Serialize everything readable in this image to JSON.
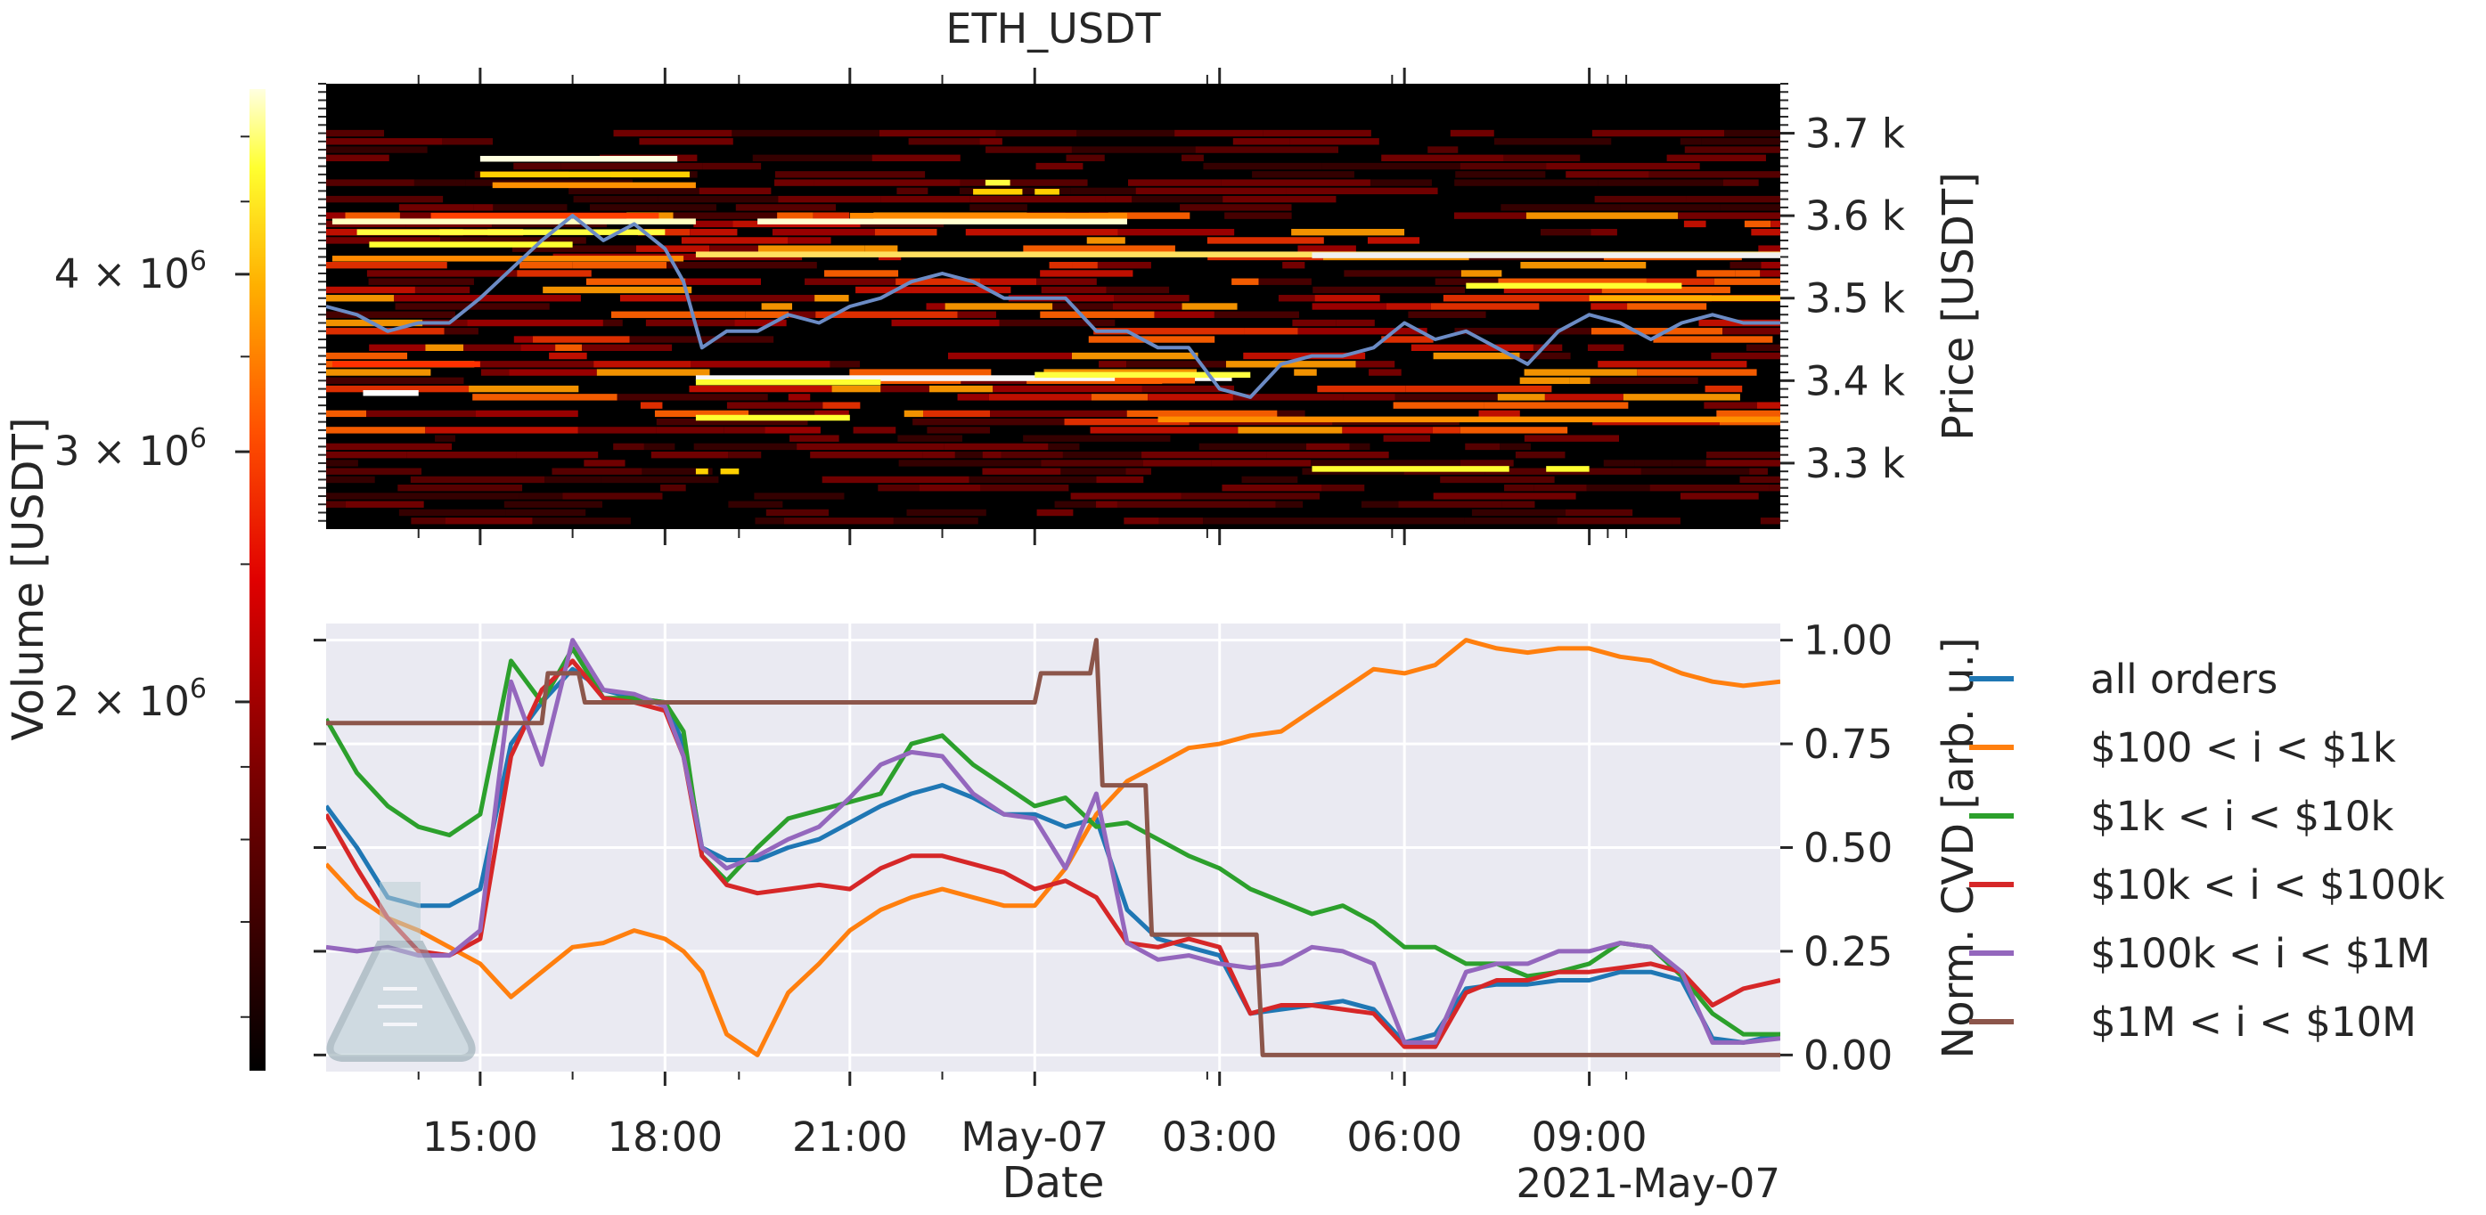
{
  "chart_data": [
    {
      "type": "heatmap",
      "title": "ETH_USDT",
      "ylabel": "Price [USDT]",
      "y_ticks": [
        "3.3 k",
        "3.4 k",
        "3.5 k",
        "3.6 k",
        "3.7 k"
      ],
      "y_tick_values": [
        3300,
        3400,
        3500,
        3600,
        3700
      ],
      "ylim": [
        3220,
        3760
      ],
      "x_range_hours": [
        12.5,
        36.1
      ],
      "x_range_label": "2021-May-06 12:30 to 2021-May-07 12:06",
      "colorbar": {
        "label": "Volume [USDT]",
        "tick_labels": [
          "2 × 10",
          "3 × 10",
          "4 × 10"
        ],
        "tick_exponent": "6",
        "tick_values": [
          2000000,
          3000000,
          4000000
        ],
        "scale": "log",
        "colormap": "hot"
      },
      "price_series": {
        "color": "#6b8bc5",
        "x_hours": [
          12.5,
          13.0,
          13.5,
          14.0,
          14.5,
          15.0,
          15.5,
          16.0,
          16.5,
          17.0,
          17.5,
          18.0,
          18.3,
          18.6,
          19.0,
          19.5,
          20.0,
          20.5,
          21.0,
          21.5,
          22.0,
          22.5,
          23.0,
          23.5,
          24.0,
          24.5,
          25.0,
          25.5,
          26.0,
          26.5,
          27.0,
          27.5,
          28.0,
          28.5,
          29.0,
          29.5,
          30.0,
          30.5,
          31.0,
          31.5,
          32.0,
          32.5,
          33.0,
          33.5,
          34.0,
          34.5,
          35.0,
          35.5,
          36.1
        ],
        "y_price": [
          3490,
          3480,
          3460,
          3470,
          3470,
          3500,
          3535,
          3570,
          3600,
          3570,
          3590,
          3560,
          3520,
          3440,
          3460,
          3460,
          3480,
          3470,
          3490,
          3500,
          3520,
          3530,
          3520,
          3500,
          3500,
          3500,
          3460,
          3460,
          3440,
          3440,
          3390,
          3380,
          3420,
          3430,
          3430,
          3440,
          3470,
          3450,
          3460,
          3440,
          3420,
          3460,
          3480,
          3470,
          3450,
          3470,
          3480,
          3470,
          3470
        ]
      }
    },
    {
      "type": "line",
      "xlabel": "Date",
      "ylabel": "Norm. CVD [arb. u.]",
      "y_ticks": [
        "0.00",
        "0.25",
        "0.50",
        "0.75",
        "1.00"
      ],
      "y_tick_values": [
        0,
        0.25,
        0.5,
        0.75,
        1.0
      ],
      "ylim": [
        -0.04,
        1.04
      ],
      "x_tick_labels": [
        "15:00",
        "18:00",
        "21:00",
        "May-07",
        "03:00",
        "06:00",
        "09:00"
      ],
      "x_tick_hours": [
        15,
        18,
        21,
        24,
        27,
        30,
        33
      ],
      "x_range_hours": [
        12.5,
        36.1
      ],
      "x_offset_label": "2021-May-07",
      "background": "#eaeaf2",
      "grid": true,
      "legend_position": "right outside",
      "series": [
        {
          "name": "all orders",
          "color": "#1f77b4",
          "x": [
            12.5,
            13.0,
            13.5,
            14.0,
            14.5,
            15.0,
            15.5,
            16.0,
            16.5,
            17.0,
            17.5,
            18.0,
            18.3,
            18.6,
            19.0,
            19.5,
            20.0,
            20.5,
            21.0,
            21.5,
            22.0,
            22.5,
            23.0,
            23.5,
            24.0,
            24.5,
            25.0,
            25.5,
            26.0,
            26.5,
            27.0,
            27.5,
            28.0,
            28.5,
            29.0,
            29.5,
            30.0,
            30.5,
            31.0,
            31.5,
            32.0,
            32.5,
            33.0,
            33.5,
            34.0,
            34.5,
            35.0,
            35.5,
            36.1
          ],
          "y": [
            0.6,
            0.5,
            0.38,
            0.36,
            0.36,
            0.4,
            0.75,
            0.85,
            0.93,
            0.88,
            0.86,
            0.85,
            0.75,
            0.5,
            0.47,
            0.47,
            0.5,
            0.52,
            0.56,
            0.6,
            0.63,
            0.65,
            0.62,
            0.58,
            0.58,
            0.55,
            0.57,
            0.35,
            0.28,
            0.26,
            0.24,
            0.1,
            0.11,
            0.12,
            0.13,
            0.11,
            0.03,
            0.05,
            0.16,
            0.17,
            0.17,
            0.18,
            0.18,
            0.2,
            0.2,
            0.18,
            0.04,
            0.03,
            0.05
          ]
        },
        {
          "name": "$100 < i < $1k",
          "color": "#ff7f0e",
          "x": [
            12.5,
            13.0,
            13.5,
            14.0,
            14.5,
            15.0,
            15.5,
            16.0,
            16.5,
            17.0,
            17.5,
            18.0,
            18.3,
            18.6,
            19.0,
            19.5,
            20.0,
            20.5,
            21.0,
            21.5,
            22.0,
            22.5,
            23.0,
            23.5,
            24.0,
            24.5,
            25.0,
            25.5,
            26.0,
            26.5,
            27.0,
            27.5,
            28.0,
            28.5,
            29.0,
            29.5,
            30.0,
            30.5,
            31.0,
            31.5,
            32.0,
            32.5,
            33.0,
            33.5,
            34.0,
            34.5,
            35.0,
            35.5,
            36.1
          ],
          "y": [
            0.46,
            0.38,
            0.33,
            0.3,
            0.26,
            0.22,
            0.14,
            0.2,
            0.26,
            0.27,
            0.3,
            0.28,
            0.25,
            0.2,
            0.05,
            0.0,
            0.15,
            0.22,
            0.3,
            0.35,
            0.38,
            0.4,
            0.38,
            0.36,
            0.36,
            0.45,
            0.58,
            0.66,
            0.7,
            0.74,
            0.75,
            0.77,
            0.78,
            0.83,
            0.88,
            0.93,
            0.92,
            0.94,
            1.0,
            0.98,
            0.97,
            0.98,
            0.98,
            0.96,
            0.95,
            0.92,
            0.9,
            0.89,
            0.9
          ]
        },
        {
          "name": "$1k < i < $10k",
          "color": "#2ca02c",
          "x": [
            12.5,
            13.0,
            13.5,
            14.0,
            14.5,
            15.0,
            15.5,
            16.0,
            16.5,
            17.0,
            17.5,
            18.0,
            18.3,
            18.6,
            19.0,
            19.5,
            20.0,
            20.5,
            21.0,
            21.5,
            22.0,
            22.5,
            23.0,
            23.5,
            24.0,
            24.5,
            25.0,
            25.5,
            26.0,
            26.5,
            27.0,
            27.5,
            28.0,
            28.5,
            29.0,
            29.5,
            30.0,
            30.5,
            31.0,
            31.5,
            32.0,
            32.5,
            33.0,
            33.5,
            34.0,
            34.5,
            35.0,
            35.5,
            36.1
          ],
          "y": [
            0.81,
            0.68,
            0.6,
            0.55,
            0.53,
            0.58,
            0.95,
            0.85,
            0.98,
            0.86,
            0.86,
            0.85,
            0.78,
            0.48,
            0.42,
            0.5,
            0.57,
            0.59,
            0.61,
            0.63,
            0.75,
            0.77,
            0.7,
            0.65,
            0.6,
            0.62,
            0.55,
            0.56,
            0.52,
            0.48,
            0.45,
            0.4,
            0.37,
            0.34,
            0.36,
            0.32,
            0.26,
            0.26,
            0.22,
            0.22,
            0.19,
            0.2,
            0.22,
            0.27,
            0.26,
            0.19,
            0.1,
            0.05,
            0.05
          ]
        },
        {
          "name": "$10k < i < $100k",
          "color": "#d62728",
          "x": [
            12.5,
            13.0,
            13.5,
            14.0,
            14.5,
            15.0,
            15.5,
            16.0,
            16.5,
            17.0,
            17.5,
            18.0,
            18.3,
            18.6,
            19.0,
            19.5,
            20.0,
            20.5,
            21.0,
            21.5,
            22.0,
            22.5,
            23.0,
            23.5,
            24.0,
            24.5,
            25.0,
            25.5,
            26.0,
            26.5,
            27.0,
            27.5,
            28.0,
            28.5,
            29.0,
            29.5,
            30.0,
            30.5,
            31.0,
            31.5,
            32.0,
            32.5,
            33.0,
            33.5,
            34.0,
            34.5,
            35.0,
            35.5,
            36.1
          ],
          "y": [
            0.58,
            0.45,
            0.33,
            0.25,
            0.24,
            0.28,
            0.72,
            0.88,
            0.95,
            0.86,
            0.85,
            0.83,
            0.72,
            0.48,
            0.41,
            0.39,
            0.4,
            0.41,
            0.4,
            0.45,
            0.48,
            0.48,
            0.46,
            0.44,
            0.4,
            0.42,
            0.38,
            0.27,
            0.26,
            0.28,
            0.26,
            0.1,
            0.12,
            0.12,
            0.11,
            0.1,
            0.02,
            0.02,
            0.15,
            0.18,
            0.18,
            0.2,
            0.2,
            0.21,
            0.22,
            0.2,
            0.12,
            0.16,
            0.18
          ]
        },
        {
          "name": "$100k < i < $1M",
          "color": "#9467bd",
          "x": [
            12.5,
            13.0,
            13.5,
            14.0,
            14.5,
            15.0,
            15.5,
            16.0,
            16.5,
            17.0,
            17.5,
            18.0,
            18.3,
            18.6,
            19.0,
            19.5,
            20.0,
            20.5,
            21.0,
            21.5,
            22.0,
            22.5,
            23.0,
            23.5,
            24.0,
            24.5,
            25.0,
            25.5,
            26.0,
            26.5,
            27.0,
            27.5,
            28.0,
            28.5,
            29.0,
            29.5,
            30.0,
            30.5,
            31.0,
            31.5,
            32.0,
            32.5,
            33.0,
            33.5,
            34.0,
            34.5,
            35.0,
            35.5,
            36.1
          ],
          "y": [
            0.26,
            0.25,
            0.26,
            0.24,
            0.24,
            0.3,
            0.9,
            0.7,
            1.0,
            0.88,
            0.87,
            0.84,
            0.72,
            0.5,
            0.45,
            0.48,
            0.52,
            0.55,
            0.62,
            0.7,
            0.73,
            0.72,
            0.63,
            0.58,
            0.57,
            0.45,
            0.63,
            0.27,
            0.23,
            0.24,
            0.22,
            0.21,
            0.22,
            0.26,
            0.25,
            0.22,
            0.03,
            0.03,
            0.2,
            0.22,
            0.22,
            0.25,
            0.25,
            0.27,
            0.26,
            0.2,
            0.03,
            0.03,
            0.04
          ]
        },
        {
          "name": "$1M < i < $10M",
          "color": "#8c564b",
          "x": [
            12.5,
            15.5,
            15.8,
            16.0,
            16.1,
            16.6,
            16.7,
            24.0,
            24.1,
            24.9,
            25.0,
            25.1,
            25.8,
            25.9,
            26.9,
            27.0,
            27.6,
            27.7,
            36.1
          ],
          "y": [
            0.8,
            0.8,
            0.8,
            0.8,
            0.92,
            0.92,
            0.85,
            0.85,
            0.92,
            0.92,
            1.0,
            0.65,
            0.65,
            0.29,
            0.29,
            0.29,
            0.29,
            0.0,
            0.0
          ]
        }
      ]
    }
  ],
  "logo": {
    "icon": "flask-icon"
  }
}
